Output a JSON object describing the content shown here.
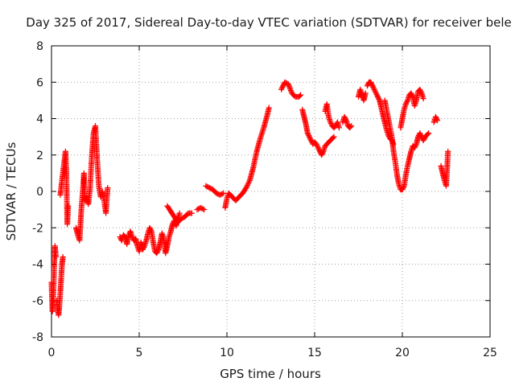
{
  "chart_data": {
    "type": "scatter",
    "title": "Day 325 of 2017, Sidereal Day-to-day VTEC variation (SDTVAR) for receiver bele",
    "xlabel": "GPS time / hours",
    "ylabel": "SDTVAR / TECUs",
    "xlim": [
      0,
      25
    ],
    "ylim": [
      -8,
      8
    ],
    "xticks": [
      0,
      5,
      10,
      15,
      20,
      25
    ],
    "yticks": [
      -8,
      -6,
      -4,
      -2,
      0,
      2,
      4,
      6,
      8
    ],
    "xtick_labels": [
      "0",
      "5",
      "10",
      "15",
      "20",
      "25"
    ],
    "ytick_labels": [
      "-8",
      "-6",
      "-4",
      "-2",
      "0",
      "2",
      "4",
      "6",
      "8"
    ],
    "grid": true,
    "marker": "+",
    "marker_color": "#ff0000",
    "series": [
      {
        "name": "SDTVAR",
        "segments": [
          [
            [
              0.0,
              -5.0
            ],
            [
              0.05,
              -6.6
            ],
            [
              0.1,
              -6.0
            ],
            [
              0.15,
              -4.2
            ],
            [
              0.2,
              -3.0
            ],
            [
              0.25,
              -3.6
            ]
          ],
          [
            [
              0.3,
              -6.0
            ],
            [
              0.35,
              -6.5
            ],
            [
              0.4,
              -6.8
            ],
            [
              0.45,
              -6.3
            ],
            [
              0.5,
              -5.6
            ],
            [
              0.55,
              -4.8
            ],
            [
              0.6,
              -4.0
            ],
            [
              0.65,
              -3.6
            ]
          ],
          [
            [
              0.5,
              -0.2
            ],
            [
              0.6,
              0.6
            ],
            [
              0.7,
              1.4
            ],
            [
              0.8,
              2.2
            ],
            [
              0.85,
              1.0
            ],
            [
              0.9,
              -1.8
            ],
            [
              0.95,
              -0.8
            ]
          ],
          [
            [
              1.4,
              -2.0
            ],
            [
              1.5,
              -2.4
            ],
            [
              1.6,
              -2.7
            ],
            [
              1.7,
              -1.0
            ],
            [
              1.8,
              0.2
            ],
            [
              1.85,
              1.0
            ],
            [
              1.9,
              -0.5
            ],
            [
              2.0,
              -0.3
            ],
            [
              2.1,
              -0.7
            ],
            [
              2.2,
              0.2
            ],
            [
              2.3,
              2.0
            ],
            [
              2.4,
              3.2
            ],
            [
              2.5,
              3.6
            ],
            [
              2.6,
              1.8
            ],
            [
              2.7,
              0.3
            ],
            [
              2.8,
              -0.3
            ],
            [
              2.9,
              0.0
            ],
            [
              3.0,
              -0.5
            ],
            [
              3.1,
              -1.2
            ],
            [
              3.2,
              0.2
            ]
          ],
          [
            [
              3.9,
              -2.5
            ],
            [
              4.0,
              -2.7
            ],
            [
              4.1,
              -2.4
            ],
            [
              4.2,
              -2.5
            ],
            [
              4.3,
              -2.9
            ],
            [
              4.4,
              -2.4
            ],
            [
              4.5,
              -2.2
            ],
            [
              4.6,
              -2.5
            ],
            [
              4.7,
              -2.7
            ],
            [
              4.8,
              -2.6
            ],
            [
              4.9,
              -3.0
            ],
            [
              5.0,
              -3.3
            ],
            [
              5.1,
              -2.8
            ],
            [
              5.2,
              -3.2
            ],
            [
              5.3,
              -3.0
            ],
            [
              5.4,
              -2.7
            ],
            [
              5.5,
              -2.3
            ],
            [
              5.6,
              -2.0
            ],
            [
              5.7,
              -2.2
            ],
            [
              5.8,
              -2.8
            ],
            [
              5.9,
              -3.3
            ],
            [
              6.0,
              -3.4
            ],
            [
              6.1,
              -3.2
            ],
            [
              6.2,
              -2.8
            ],
            [
              6.3,
              -2.3
            ],
            [
              6.4,
              -2.6
            ],
            [
              6.5,
              -3.4
            ],
            [
              6.6,
              -3.0
            ],
            [
              6.7,
              -2.5
            ],
            [
              6.8,
              -2.2
            ],
            [
              6.9,
              -1.8
            ],
            [
              7.0,
              -1.6
            ],
            [
              7.1,
              -1.9
            ],
            [
              7.2,
              -1.5
            ],
            [
              7.3,
              -1.2
            ]
          ],
          [
            [
              6.6,
              -0.8
            ],
            [
              6.8,
              -1.1
            ],
            [
              7.0,
              -1.4
            ],
            [
              7.2,
              -1.7
            ],
            [
              7.4,
              -1.5
            ],
            [
              7.6,
              -1.4
            ],
            [
              7.8,
              -1.2
            ],
            [
              8.0,
              -1.2
            ]
          ],
          [
            [
              8.3,
              -1.0
            ],
            [
              8.5,
              -0.9
            ],
            [
              8.7,
              -1.0
            ]
          ],
          [
            [
              8.8,
              0.3
            ],
            [
              9.0,
              0.2
            ],
            [
              9.2,
              0.1
            ],
            [
              9.4,
              -0.1
            ],
            [
              9.6,
              -0.2
            ],
            [
              9.8,
              -0.1
            ]
          ],
          [
            [
              9.9,
              -0.9
            ],
            [
              10.0,
              -0.4
            ],
            [
              10.1,
              -0.1
            ],
            [
              10.3,
              -0.3
            ],
            [
              10.5,
              -0.5
            ],
            [
              10.7,
              -0.3
            ],
            [
              10.9,
              -0.1
            ],
            [
              11.1,
              0.2
            ],
            [
              11.3,
              0.6
            ],
            [
              11.5,
              1.3
            ],
            [
              11.7,
              2.2
            ],
            [
              11.9,
              2.9
            ],
            [
              12.1,
              3.5
            ],
            [
              12.3,
              4.2
            ],
            [
              12.4,
              4.6
            ]
          ],
          [
            [
              13.1,
              5.6
            ],
            [
              13.3,
              6.0
            ],
            [
              13.5,
              5.9
            ],
            [
              13.7,
              5.4
            ],
            [
              13.9,
              5.2
            ],
            [
              14.1,
              5.2
            ],
            [
              14.2,
              5.3
            ]
          ],
          [
            [
              14.3,
              4.5
            ],
            [
              14.4,
              4.1
            ],
            [
              14.5,
              3.7
            ],
            [
              14.6,
              3.2
            ],
            [
              14.7,
              3.0
            ],
            [
              14.8,
              2.8
            ],
            [
              14.9,
              2.6
            ],
            [
              15.0,
              2.7
            ],
            [
              15.1,
              2.6
            ],
            [
              15.2,
              2.4
            ],
            [
              15.3,
              2.2
            ],
            [
              15.4,
              2.0
            ],
            [
              15.5,
              2.2
            ],
            [
              15.6,
              2.5
            ],
            [
              15.7,
              2.6
            ],
            [
              15.8,
              2.7
            ],
            [
              15.9,
              2.8
            ],
            [
              16.0,
              2.9
            ],
            [
              16.1,
              3.0
            ]
          ],
          [
            [
              15.6,
              4.4
            ],
            [
              15.7,
              4.8
            ],
            [
              15.8,
              4.1
            ],
            [
              15.9,
              3.8
            ],
            [
              16.0,
              3.6
            ],
            [
              16.1,
              3.5
            ],
            [
              16.2,
              3.6
            ],
            [
              16.3,
              3.8
            ],
            [
              16.4,
              3.5
            ]
          ],
          [
            [
              16.6,
              3.8
            ],
            [
              16.7,
              4.1
            ],
            [
              16.8,
              3.9
            ],
            [
              16.9,
              3.6
            ],
            [
              17.0,
              3.5
            ],
            [
              17.1,
              3.6
            ]
          ],
          [
            [
              17.5,
              5.2
            ],
            [
              17.6,
              5.6
            ],
            [
              17.7,
              5.3
            ],
            [
              17.8,
              5.0
            ],
            [
              17.9,
              5.4
            ]
          ],
          [
            [
              18.0,
              5.8
            ],
            [
              18.1,
              6.0
            ],
            [
              18.2,
              6.0
            ],
            [
              18.3,
              5.8
            ],
            [
              18.4,
              5.6
            ],
            [
              18.5,
              5.4
            ],
            [
              18.6,
              5.2
            ],
            [
              18.7,
              5.0
            ],
            [
              18.8,
              4.6
            ],
            [
              18.9,
              4.2
            ],
            [
              19.0,
              3.8
            ],
            [
              19.1,
              3.4
            ],
            [
              19.2,
              3.1
            ],
            [
              19.3,
              2.9
            ],
            [
              19.4,
              2.8
            ],
            [
              19.5,
              2.6
            ]
          ],
          [
            [
              19.0,
              5.0
            ],
            [
              19.2,
              4.0
            ],
            [
              19.4,
              3.0
            ],
            [
              19.5,
              2.2
            ],
            [
              19.6,
              1.6
            ],
            [
              19.7,
              0.9
            ],
            [
              19.8,
              0.4
            ],
            [
              19.9,
              0.1
            ],
            [
              20.0,
              0.1
            ],
            [
              20.1,
              0.3
            ],
            [
              20.2,
              0.9
            ],
            [
              20.3,
              1.4
            ],
            [
              20.4,
              1.8
            ],
            [
              20.5,
              2.2
            ],
            [
              20.6,
              2.5
            ],
            [
              20.7,
              2.4
            ],
            [
              20.8,
              2.6
            ],
            [
              20.9,
              3.0
            ],
            [
              21.0,
              3.2
            ],
            [
              21.1,
              3.0
            ],
            [
              21.2,
              2.8
            ],
            [
              21.3,
              3.0
            ],
            [
              21.4,
              3.1
            ],
            [
              21.5,
              3.2
            ]
          ],
          [
            [
              19.9,
              3.5
            ],
            [
              20.0,
              4.0
            ],
            [
              20.1,
              4.5
            ],
            [
              20.2,
              4.8
            ],
            [
              20.3,
              5.0
            ],
            [
              20.4,
              5.3
            ],
            [
              20.5,
              5.4
            ],
            [
              20.6,
              5.2
            ],
            [
              20.7,
              4.7
            ],
            [
              20.8,
              5.0
            ],
            [
              20.9,
              5.5
            ],
            [
              21.0,
              5.6
            ],
            [
              21.1,
              5.4
            ],
            [
              21.2,
              5.1
            ]
          ],
          [
            [
              21.8,
              3.8
            ],
            [
              21.9,
              4.1
            ],
            [
              22.0,
              3.9
            ]
          ],
          [
            [
              22.2,
              1.4
            ],
            [
              22.3,
              1.0
            ],
            [
              22.4,
              0.6
            ],
            [
              22.5,
              0.3
            ],
            [
              22.55,
              1.2
            ],
            [
              22.6,
              2.2
            ]
          ]
        ]
      }
    ]
  }
}
